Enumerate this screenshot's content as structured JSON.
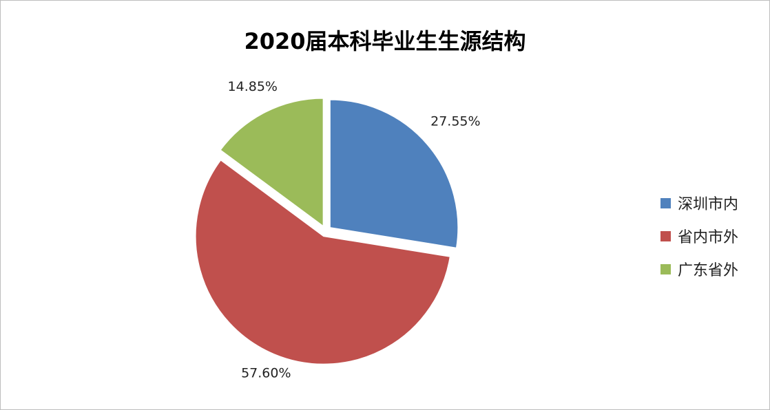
{
  "chart_data": {
    "type": "pie",
    "title": "2020届本科毕业生生源结构",
    "categories": [
      "深圳市内",
      "省内市外",
      "广东省外"
    ],
    "values": [
      27.55,
      57.6,
      14.85
    ],
    "labels": [
      "27.55%",
      "57.60%",
      "14.85%"
    ],
    "colors": [
      "#4f81bd",
      "#c0504d",
      "#9bbb59"
    ],
    "exploded": true,
    "legend_position": "right"
  }
}
